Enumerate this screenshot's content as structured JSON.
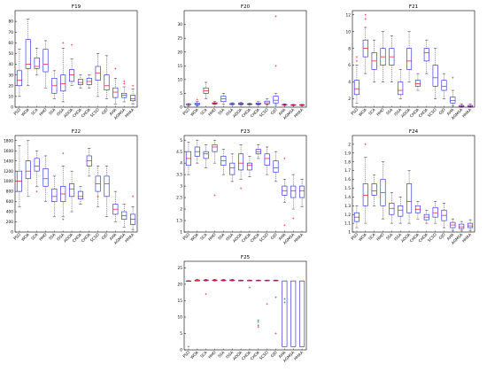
{
  "page": {
    "title": ""
  },
  "chart_data": [
    {
      "type": "box",
      "title": "F19",
      "categories": [
        "PSO",
        "WOA",
        "SCA",
        "HHO",
        "SSA",
        "ISSA",
        "AOOA",
        "CHOA",
        "CHOA",
        "SCSO",
        "GJO",
        "AHA",
        "AGMSA",
        "HHAA"
      ],
      "ylim": [
        0,
        90
      ],
      "yticks": [
        0,
        10,
        20,
        30,
        40,
        50,
        60,
        70,
        80
      ],
      "boxes": [
        {
          "min": 10,
          "q1": 20,
          "median": 25,
          "q3": 34,
          "max": 54,
          "outliers": []
        },
        {
          "min": 20,
          "q1": 36,
          "median": 40,
          "q3": 63,
          "max": 82,
          "outliers": []
        },
        {
          "min": 30,
          "q1": 36,
          "median": 38,
          "q3": 46,
          "max": 55,
          "outliers": []
        },
        {
          "min": 18,
          "q1": 33,
          "median": 40,
          "q3": 54,
          "max": 62,
          "outliers": []
        },
        {
          "min": 8,
          "q1": 13,
          "median": 20,
          "q3": 27,
          "max": 34,
          "outliers": []
        },
        {
          "min": 5,
          "q1": 15,
          "median": 22,
          "q3": 30,
          "max": 55,
          "outliers": [
            60
          ]
        },
        {
          "min": 20,
          "q1": 24,
          "median": 30,
          "q3": 35,
          "max": 45,
          "outliers": [
            58
          ]
        },
        {
          "min": 18,
          "q1": 21,
          "median": 23,
          "q3": 26,
          "max": 30,
          "outliers": []
        },
        {
          "min": 18,
          "q1": 21,
          "median": 24,
          "q3": 27,
          "max": 30,
          "outliers": []
        },
        {
          "min": 10,
          "q1": 25,
          "median": 32,
          "q3": 38,
          "max": 50,
          "outliers": []
        },
        {
          "min": 8,
          "q1": 16,
          "median": 20,
          "q3": 30,
          "max": 48,
          "outliers": []
        },
        {
          "min": 3,
          "q1": 9,
          "median": 14,
          "q3": 18,
          "max": 27,
          "outliers": [
            36
          ]
        },
        {
          "min": 5,
          "q1": 9,
          "median": 11,
          "q3": 13,
          "max": 19,
          "outliers": [
            22,
            24
          ]
        },
        {
          "min": 3,
          "q1": 6,
          "median": 8,
          "q3": 11,
          "max": 17,
          "outliers": [
            20
          ]
        }
      ]
    },
    {
      "type": "box",
      "title": "F20",
      "categories": [
        "PSO",
        "WOA",
        "SCA",
        "HHO",
        "SSA",
        "ISSA",
        "AOOA",
        "CHOA",
        "CHOA",
        "SCSO",
        "GJO",
        "AHA",
        "AGMSA",
        "HHAA"
      ],
      "ylim": [
        0,
        35
      ],
      "yticks": [
        0,
        5,
        10,
        15,
        20,
        25,
        30
      ],
      "boxes": [
        {
          "min": 0.5,
          "q1": 0.9,
          "median": 1,
          "q3": 1.1,
          "max": 1.3,
          "outliers": []
        },
        {
          "min": 0.5,
          "q1": 0.9,
          "median": 1.1,
          "q3": 1.4,
          "max": 2,
          "outliers": [
            2.8
          ]
        },
        {
          "min": 3,
          "q1": 5,
          "median": 6,
          "q3": 7,
          "max": 9,
          "outliers": []
        },
        {
          "min": 1,
          "q1": 1.2,
          "median": 1.4,
          "q3": 1.6,
          "max": 2,
          "outliers": []
        },
        {
          "min": 1,
          "q1": 2,
          "median": 3,
          "q3": 4,
          "max": 5,
          "outliers": []
        },
        {
          "min": 0.8,
          "q1": 1,
          "median": 1.1,
          "q3": 1.3,
          "max": 1.6,
          "outliers": []
        },
        {
          "min": 0.8,
          "q1": 1,
          "median": 1.2,
          "q3": 1.4,
          "max": 1.7,
          "outliers": []
        },
        {
          "min": 0.8,
          "q1": 1,
          "median": 1.1,
          "q3": 1.2,
          "max": 1.5,
          "outliers": []
        },
        {
          "min": 0.8,
          "q1": 1,
          "median": 1.2,
          "q3": 1.5,
          "max": 2,
          "outliers": []
        },
        {
          "min": 0.8,
          "q1": 1.2,
          "median": 1.6,
          "q3": 2.2,
          "max": 3,
          "outliers": []
        },
        {
          "min": 0.8,
          "q1": 1.5,
          "median": 2.5,
          "q3": 4,
          "max": 5,
          "outliers": [
            15,
            33
          ]
        },
        {
          "min": 0.6,
          "q1": 0.8,
          "median": 0.9,
          "q3": 1,
          "max": 1.2,
          "outliers": []
        },
        {
          "min": 0.5,
          "q1": 0.7,
          "median": 0.8,
          "q3": 0.9,
          "max": 1,
          "outliers": []
        },
        {
          "min": 0.5,
          "q1": 0.7,
          "median": 0.8,
          "q3": 0.9,
          "max": 1,
          "outliers": []
        }
      ]
    },
    {
      "type": "box",
      "title": "F21",
      "categories": [
        "PSO",
        "WOA",
        "SCA",
        "HHO",
        "SSA",
        "ISSA",
        "AOOA",
        "CHOA",
        "CHOA",
        "SCSO",
        "GJO",
        "AHA",
        "AGMSA",
        "HHAA"
      ],
      "ylim": [
        1,
        12.5
      ],
      "yticks": [
        2,
        4,
        6,
        8,
        10,
        12
      ],
      "boxes": [
        {
          "min": 1.5,
          "q1": 2.5,
          "median": 3.2,
          "q3": 4.2,
          "max": 6,
          "outliers": [
            6.5,
            7
          ]
        },
        {
          "min": 5,
          "q1": 7,
          "median": 8,
          "q3": 9,
          "max": 10.5,
          "outliers": [
            11.5,
            12
          ]
        },
        {
          "min": 4,
          "q1": 5.5,
          "median": 6.5,
          "q3": 7.5,
          "max": 9,
          "outliers": []
        },
        {
          "min": 4,
          "q1": 6,
          "median": 7,
          "q3": 8,
          "max": 10,
          "outliers": []
        },
        {
          "min": 4,
          "q1": 6,
          "median": 7,
          "q3": 8,
          "max": 9.5,
          "outliers": []
        },
        {
          "min": 2,
          "q1": 2.5,
          "median": 3,
          "q3": 4,
          "max": 5.5,
          "outliers": []
        },
        {
          "min": 4,
          "q1": 5.5,
          "median": 6.5,
          "q3": 8,
          "max": 10,
          "outliers": []
        },
        {
          "min": 3,
          "q1": 3.5,
          "median": 3.8,
          "q3": 4.2,
          "max": 5,
          "outliers": []
        },
        {
          "min": 5,
          "q1": 6.5,
          "median": 7.5,
          "q3": 8,
          "max": 9,
          "outliers": []
        },
        {
          "min": 2,
          "q1": 3.5,
          "median": 4.5,
          "q3": 6,
          "max": 8,
          "outliers": []
        },
        {
          "min": 2,
          "q1": 3,
          "median": 3.5,
          "q3": 4.2,
          "max": 5,
          "outliers": []
        },
        {
          "min": 1.2,
          "q1": 1.5,
          "median": 1.8,
          "q3": 2.2,
          "max": 3,
          "outliers": [
            4.5
          ]
        },
        {
          "min": 1,
          "q1": 1.05,
          "median": 1.1,
          "q3": 1.2,
          "max": 1.4,
          "outliers": []
        },
        {
          "min": 1,
          "q1": 1.05,
          "median": 1.1,
          "q3": 1.2,
          "max": 1.4,
          "outliers": []
        }
      ]
    },
    {
      "type": "box",
      "title": "F22",
      "categories": [
        "PSO",
        "WOA",
        "SCA",
        "HHO",
        "SSA",
        "ISSA",
        "AOOA",
        "CHOA",
        "CHOA",
        "SCSO",
        "GJO",
        "AHA",
        "AGMSA",
        "HHAA"
      ],
      "ylim": [
        0,
        1900
      ],
      "yticks": [
        0,
        200,
        400,
        600,
        800,
        1000,
        1200,
        1400,
        1600,
        1800
      ],
      "boxes": [
        {
          "min": 500,
          "q1": 800,
          "median": 1000,
          "q3": 1200,
          "max": 1700,
          "outliers": []
        },
        {
          "min": 700,
          "q1": 1050,
          "median": 1200,
          "q3": 1400,
          "max": 1800,
          "outliers": []
        },
        {
          "min": 900,
          "q1": 1200,
          "median": 1300,
          "q3": 1450,
          "max": 1600,
          "outliers": [
            800
          ]
        },
        {
          "min": 600,
          "q1": 900,
          "median": 1050,
          "q3": 1250,
          "max": 1500,
          "outliers": []
        },
        {
          "min": 300,
          "q1": 600,
          "median": 700,
          "q3": 850,
          "max": 1100,
          "outliers": []
        },
        {
          "min": 300,
          "q1": 600,
          "median": 750,
          "q3": 900,
          "max": 1300,
          "outliers": [
            1550,
            250
          ]
        },
        {
          "min": 400,
          "q1": 700,
          "median": 850,
          "q3": 950,
          "max": 1200,
          "outliers": []
        },
        {
          "min": 550,
          "q1": 650,
          "median": 700,
          "q3": 800,
          "max": 900,
          "outliers": []
        },
        {
          "min": 1100,
          "q1": 1300,
          "median": 1400,
          "q3": 1500,
          "max": 1650,
          "outliers": []
        },
        {
          "min": 500,
          "q1": 800,
          "median": 950,
          "q3": 1100,
          "max": 1300,
          "outliers": [
            700
          ]
        },
        {
          "min": 300,
          "q1": 700,
          "median": 950,
          "q3": 1100,
          "max": 1300,
          "outliers": []
        },
        {
          "min": 200,
          "q1": 350,
          "median": 450,
          "q3": 550,
          "max": 800,
          "outliers": []
        },
        {
          "min": 100,
          "q1": 250,
          "median": 320,
          "q3": 400,
          "max": 550,
          "outliers": []
        },
        {
          "min": 50,
          "q1": 150,
          "median": 250,
          "q3": 350,
          "max": 500,
          "outliers": [
            700
          ]
        }
      ]
    },
    {
      "type": "box",
      "title": "F23",
      "categories": [
        "PSO",
        "WOA",
        "SCA",
        "HHO",
        "SSA",
        "ISSA",
        "AOOA",
        "CHOA",
        "CHOA",
        "SCSO",
        "GJO",
        "AHA",
        "AGMSA",
        "HHAA"
      ],
      "ylim": [
        1,
        5.2
      ],
      "yticks": [
        1,
        1.5,
        2,
        2.5,
        3,
        3.5,
        4,
        4.5,
        5
      ],
      "boxes": [
        {
          "min": 3.5,
          "q1": 3.9,
          "median": 4.2,
          "q3": 4.5,
          "max": 4.9,
          "outliers": []
        },
        {
          "min": 4,
          "q1": 4.3,
          "median": 4.5,
          "q3": 4.7,
          "max": 5,
          "outliers": []
        },
        {
          "min": 3.8,
          "q1": 4.2,
          "median": 4.4,
          "q3": 4.5,
          "max": 4.8,
          "outliers": []
        },
        {
          "min": 4,
          "q1": 4.5,
          "median": 4.7,
          "q3": 4.8,
          "max": 5,
          "outliers": [
            2.6
          ]
        },
        {
          "min": 3.5,
          "q1": 3.9,
          "median": 4.1,
          "q3": 4.3,
          "max": 4.6,
          "outliers": []
        },
        {
          "min": 3.2,
          "q1": 3.5,
          "median": 3.8,
          "q3": 4,
          "max": 4.4,
          "outliers": []
        },
        {
          "min": 3.3,
          "q1": 3.7,
          "median": 4,
          "q3": 4.4,
          "max": 4.8,
          "outliers": [
            2.9
          ]
        },
        {
          "min": 3.4,
          "q1": 3.7,
          "median": 3.9,
          "q3": 4,
          "max": 4.3,
          "outliers": []
        },
        {
          "min": 4.2,
          "q1": 4.4,
          "median": 4.5,
          "q3": 4.6,
          "max": 4.8,
          "outliers": []
        },
        {
          "min": 3.5,
          "q1": 3.9,
          "median": 4.2,
          "q3": 4.4,
          "max": 4.7,
          "outliers": []
        },
        {
          "min": 3.2,
          "q1": 3.6,
          "median": 3.8,
          "q3": 4.1,
          "max": 4.5,
          "outliers": []
        },
        {
          "min": 2.3,
          "q1": 2.6,
          "median": 2.8,
          "q3": 3,
          "max": 3.3,
          "outliers": [
            4.2,
            1.3
          ]
        },
        {
          "min": 2,
          "q1": 2.5,
          "median": 2.8,
          "q3": 3,
          "max": 3.5,
          "outliers": [
            1.6
          ]
        },
        {
          "min": 2.1,
          "q1": 2.5,
          "median": 2.8,
          "q3": 3,
          "max": 3.3,
          "outliers": []
        }
      ]
    },
    {
      "type": "box",
      "title": "F24",
      "categories": [
        "PSO",
        "WOA",
        "SCA",
        "HHO",
        "SSA",
        "ISSA",
        "AOOA",
        "CHOA",
        "CHOA",
        "SCSO",
        "GJO",
        "AHA",
        "AGMSA",
        "HHAA"
      ],
      "ylim": [
        1,
        2.1
      ],
      "yticks": [
        1,
        1.1,
        1.2,
        1.3,
        1.4,
        1.5,
        1.6,
        1.7,
        1.8,
        1.9,
        2
      ],
      "boxes": [
        {
          "min": 1.05,
          "q1": 1.12,
          "median": 1.17,
          "q3": 1.22,
          "max": 1.3,
          "outliers": []
        },
        {
          "min": 1.1,
          "q1": 1.3,
          "median": 1.42,
          "q3": 1.55,
          "max": 1.85,
          "outliers": [
            2
          ]
        },
        {
          "min": 1.3,
          "q1": 1.42,
          "median": 1.47,
          "q3": 1.55,
          "max": 1.65,
          "outliers": []
        },
        {
          "min": 1.15,
          "q1": 1.3,
          "median": 1.45,
          "q3": 1.6,
          "max": 1.8,
          "outliers": []
        },
        {
          "min": 1.1,
          "q1": 1.2,
          "median": 1.27,
          "q3": 1.33,
          "max": 1.45,
          "outliers": []
        },
        {
          "min": 1.1,
          "q1": 1.18,
          "median": 1.25,
          "q3": 1.3,
          "max": 1.4,
          "outliers": []
        },
        {
          "min": 1.1,
          "q1": 1.22,
          "median": 1.35,
          "q3": 1.55,
          "max": 1.7,
          "outliers": []
        },
        {
          "min": 1.15,
          "q1": 1.22,
          "median": 1.26,
          "q3": 1.3,
          "max": 1.35,
          "outliers": []
        },
        {
          "min": 1.1,
          "q1": 1.14,
          "median": 1.17,
          "q3": 1.2,
          "max": 1.25,
          "outliers": []
        },
        {
          "min": 1.1,
          "q1": 1.17,
          "median": 1.22,
          "q3": 1.28,
          "max": 1.35,
          "outliers": []
        },
        {
          "min": 1.05,
          "q1": 1.13,
          "median": 1.19,
          "q3": 1.25,
          "max": 1.33,
          "outliers": []
        },
        {
          "min": 1.02,
          "q1": 1.05,
          "median": 1.08,
          "q3": 1.11,
          "max": 1.15,
          "outliers": []
        },
        {
          "min": 1.02,
          "q1": 1.04,
          "median": 1.06,
          "q3": 1.09,
          "max": 1.12,
          "outliers": []
        },
        {
          "min": 1.02,
          "q1": 1.05,
          "median": 1.07,
          "q3": 1.1,
          "max": 1.14,
          "outliers": []
        }
      ]
    },
    {
      "type": "box",
      "title": "F25",
      "categories": [
        "PSO",
        "WOA",
        "SCA",
        "HHO",
        "SSA",
        "ISSA",
        "AOOA",
        "CHOA",
        "CHOA",
        "SCSO",
        "GJO",
        "AHA",
        "AGMSA",
        "HHAA"
      ],
      "ylim": [
        0,
        27
      ],
      "yticks": [
        0,
        5,
        10,
        15,
        20,
        25
      ],
      "boxes": [
        {
          "min": 20.9,
          "q1": 21,
          "median": 21,
          "q3": 21,
          "max": 21.1,
          "outliers": [
            1
          ]
        },
        {
          "min": 21,
          "q1": 21,
          "median": 21.2,
          "q3": 21.3,
          "max": 21.5,
          "outliers": []
        },
        {
          "min": 21,
          "q1": 21.1,
          "median": 21.2,
          "q3": 21.3,
          "max": 21.5,
          "outliers": [
            17
          ]
        },
        {
          "min": 21,
          "q1": 21.1,
          "median": 21.2,
          "q3": 21.3,
          "max": 21.5,
          "outliers": []
        },
        {
          "min": 21,
          "q1": 21.1,
          "median": 21.2,
          "q3": 21.3,
          "max": 21.5,
          "outliers": []
        },
        {
          "min": 21,
          "q1": 21.1,
          "median": 21.2,
          "q3": 21.3,
          "max": 21.5,
          "outliers": []
        },
        {
          "min": 21,
          "q1": 21.05,
          "median": 21.1,
          "q3": 21.2,
          "max": 21.3,
          "outliers": []
        },
        {
          "min": 21,
          "q1": 21.05,
          "median": 21.1,
          "q3": 21.2,
          "max": 21.3,
          "outliers": [
            19
          ]
        },
        {
          "min": 21,
          "q1": 21.05,
          "median": 21.1,
          "q3": 21.2,
          "max": 21.3,
          "outliers": [
            9,
            8.5,
            7.5,
            7
          ]
        },
        {
          "min": 21,
          "q1": 21.05,
          "median": 21.1,
          "q3": 21.2,
          "max": 21.3,
          "outliers": [
            14
          ]
        },
        {
          "min": 21,
          "q1": 21.05,
          "median": 21.1,
          "q3": 21.2,
          "max": 21.3,
          "outliers": [
            16,
            5
          ]
        },
        {
          "min": 1,
          "q1": 1,
          "median": 21,
          "q3": 21,
          "max": 21,
          "outliers": [
            15.5,
            14.5
          ]
        },
        {
          "min": 1,
          "q1": 1,
          "median": 21,
          "q3": 21,
          "max": 21,
          "outliers": []
        },
        {
          "min": 1,
          "q1": 1,
          "median": 21,
          "q3": 21,
          "max": 21,
          "outliers": []
        }
      ]
    }
  ],
  "colors": {
    "box": "#1f1fd6",
    "median": "#e0141e",
    "whisker": "#000000",
    "outlier": "#e0141e",
    "axis": "#000000"
  }
}
